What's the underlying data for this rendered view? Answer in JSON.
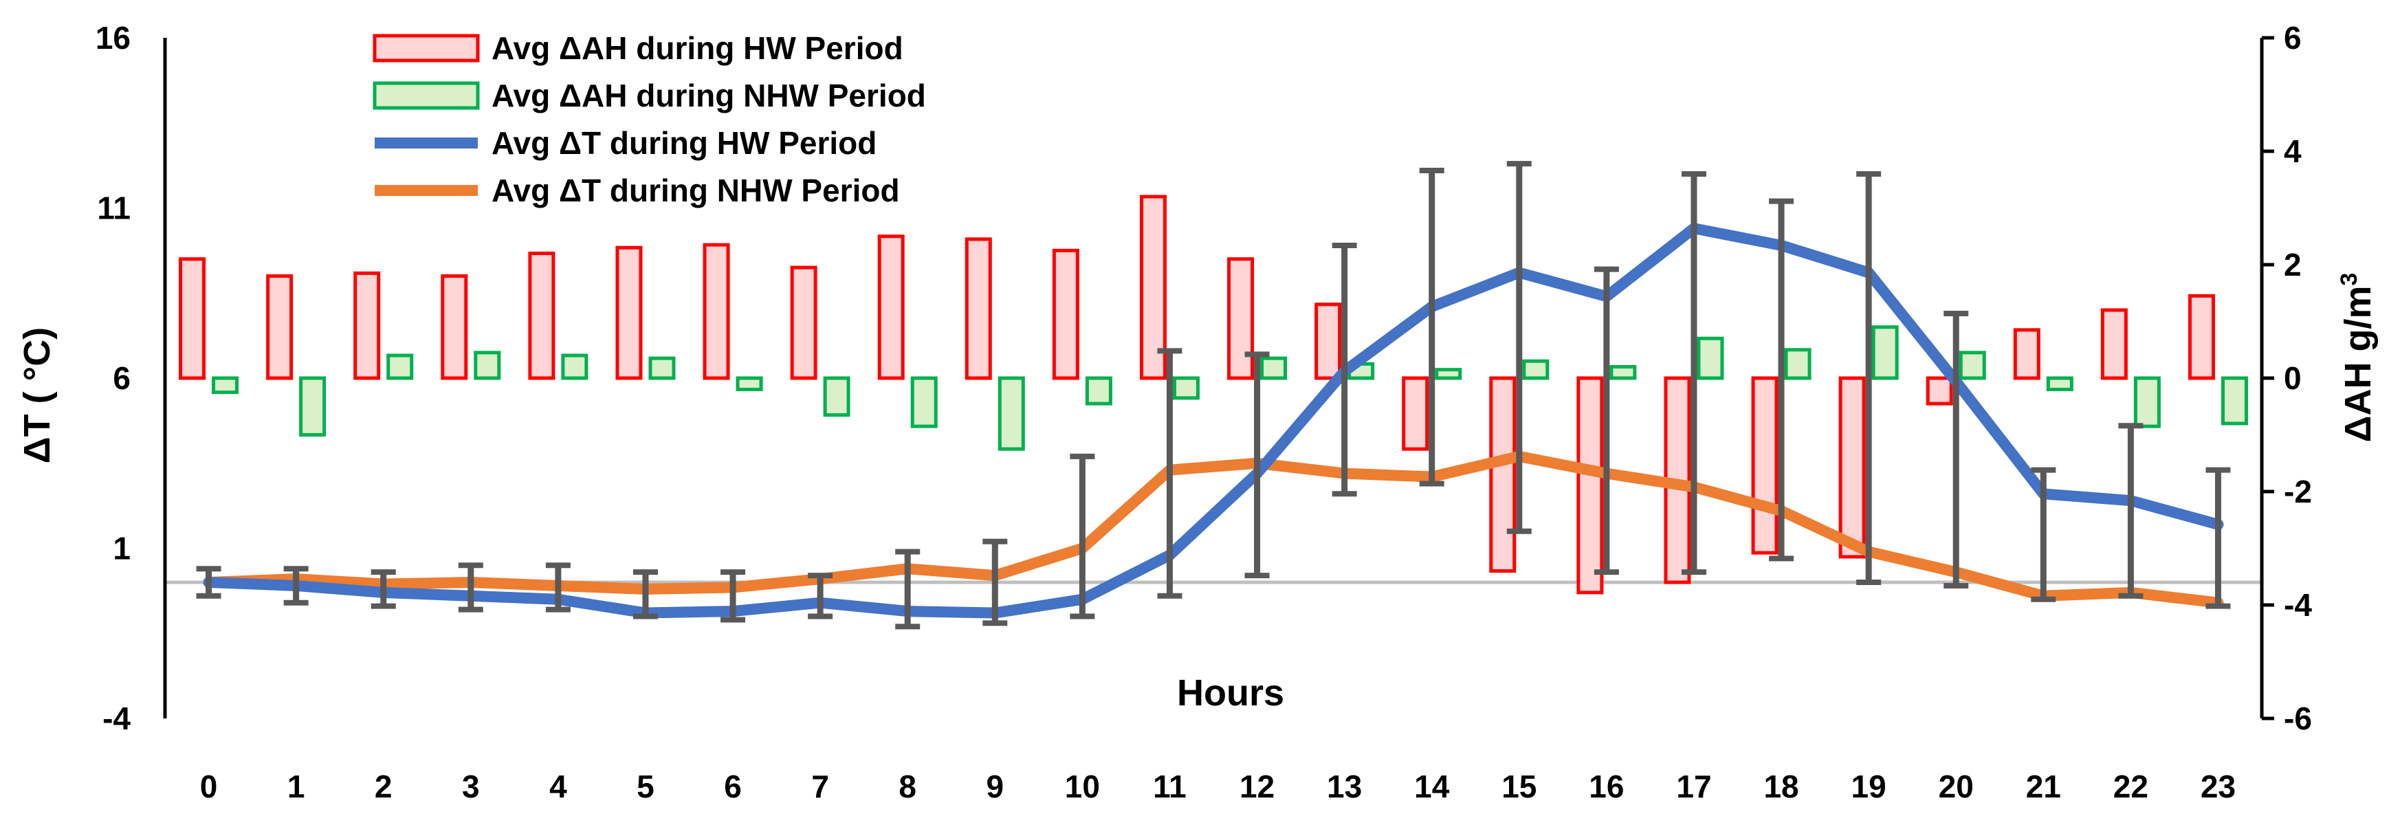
{
  "chart_data": {
    "type": "bar+line",
    "categories": [
      "0",
      "1",
      "2",
      "3",
      "4",
      "5",
      "6",
      "7",
      "8",
      "9",
      "10",
      "11",
      "12",
      "13",
      "14",
      "15",
      "16",
      "17",
      "18",
      "19",
      "20",
      "21",
      "22",
      "23"
    ],
    "xlabel": "Hours",
    "ylabel_left": "ΔT  ( °C)",
    "ylabel_right_main": "ΔAH  g/m",
    "ylabel_right_sup": "3",
    "ylim_left": [
      -4,
      16
    ],
    "yticks_left": [
      "16",
      "11",
      "6",
      "1",
      "-4"
    ],
    "ylim_right": [
      -6,
      6
    ],
    "yticks_right": [
      "6",
      "4",
      "2",
      "0",
      "-2",
      "-4",
      "-6"
    ],
    "bars": [
      {
        "name": "Avg ΔAH  during HW Period",
        "axis": "right",
        "color": "#ff0000",
        "fill": "#ffd5d5",
        "values": [
          2.1,
          1.8,
          1.85,
          1.8,
          2.2,
          2.3,
          2.35,
          1.95,
          2.5,
          2.45,
          2.25,
          3.2,
          2.1,
          1.3,
          -1.25,
          -3.4,
          -3.78,
          -3.6,
          -3.08,
          -3.15,
          -0.45,
          0.85,
          1.2,
          1.45
        ]
      },
      {
        "name": "Avg ΔAH  during NHW Period",
        "axis": "right",
        "color": "#00b050",
        "fill": "#d9f0c8",
        "values": [
          -0.25,
          -1.0,
          0.4,
          0.45,
          0.4,
          0.35,
          -0.2,
          -0.65,
          -0.85,
          -1.25,
          -0.45,
          -0.35,
          0.35,
          0.25,
          0.15,
          0.3,
          0.2,
          0.7,
          0.5,
          0.9,
          0.45,
          -0.2,
          -0.85,
          -0.8
        ]
      }
    ],
    "series": [
      {
        "name": "Avg ΔT  during HW Period",
        "axis": "left",
        "color": "#4472c4",
        "values": [
          0.0,
          -0.1,
          -0.3,
          -0.4,
          -0.5,
          -0.9,
          -0.85,
          -0.6,
          -0.85,
          -0.9,
          -0.5,
          0.8,
          3.2,
          6.2,
          8.1,
          9.1,
          8.4,
          10.4,
          9.9,
          9.1,
          5.9,
          2.6,
          2.4,
          1.7
        ]
      },
      {
        "name": "Avg ΔT  during NHW Period",
        "axis": "left",
        "color": "#ed7d31",
        "values": [
          0.0,
          0.1,
          -0.05,
          0.0,
          -0.1,
          -0.2,
          -0.15,
          0.1,
          0.4,
          0.2,
          1.0,
          3.3,
          3.5,
          3.2,
          3.1,
          3.7,
          3.2,
          2.8,
          2.1,
          0.9,
          0.3,
          -0.4,
          -0.3,
          -0.6
        ]
      }
    ],
    "error_bars": [
      {
        "center": 0.0,
        "low": -0.4,
        "high": 0.4
      },
      {
        "center": 0.0,
        "low": -0.6,
        "high": 0.4
      },
      {
        "center": -0.1,
        "low": -0.7,
        "high": 0.3
      },
      {
        "center": -0.1,
        "low": -0.8,
        "high": 0.5
      },
      {
        "center": -0.2,
        "low": -0.8,
        "high": 0.5
      },
      {
        "center": -0.5,
        "low": -1.0,
        "high": 0.3
      },
      {
        "center": -0.5,
        "low": -1.1,
        "high": 0.3
      },
      {
        "center": -0.2,
        "low": -1.0,
        "high": 0.2
      },
      {
        "center": -0.2,
        "low": -1.3,
        "high": 0.9
      },
      {
        "center": -0.4,
        "low": -1.2,
        "high": 1.2
      },
      {
        "center": 0.5,
        "low": -1.0,
        "high": 3.7
      },
      {
        "center": 2.5,
        "low": -0.4,
        "high": 6.8
      },
      {
        "center": 3.5,
        "low": 0.2,
        "high": 6.7
      },
      {
        "center": 4.5,
        "low": 2.6,
        "high": 9.9
      },
      {
        "center": 5.0,
        "low": 2.9,
        "high": 12.1
      },
      {
        "center": 6.0,
        "low": 1.5,
        "high": 12.3
      },
      {
        "center": 6.0,
        "low": 0.3,
        "high": 9.2
      },
      {
        "center": 6.5,
        "low": 0.3,
        "high": 12.0
      },
      {
        "center": 6.5,
        "low": 0.7,
        "high": 11.2
      },
      {
        "center": 5.5,
        "low": 0.0,
        "high": 12.0
      },
      {
        "center": 3.5,
        "low": -0.1,
        "high": 7.9
      },
      {
        "center": 1.0,
        "low": -0.5,
        "high": 3.3
      },
      {
        "center": 1.0,
        "low": -0.4,
        "high": 4.6
      },
      {
        "center": 1.5,
        "low": -0.7,
        "high": 3.3
      }
    ],
    "error_bar_color": "#595959",
    "baseline_value_left": 0,
    "baseline_color": "#bfbfbf",
    "legend_position": "top-left"
  }
}
